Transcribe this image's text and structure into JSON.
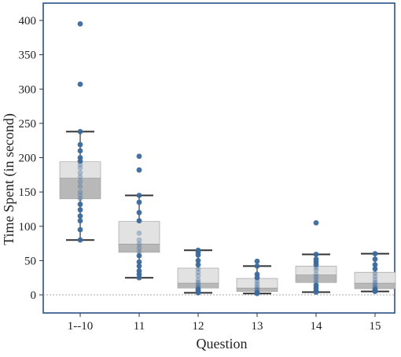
{
  "chart_data": {
    "type": "box",
    "xlabel": "Question",
    "ylabel": "Time Spent (in second)",
    "ylim": [
      0,
      400
    ],
    "yticks": [
      0,
      50,
      100,
      150,
      200,
      250,
      300,
      350,
      400
    ],
    "grid": false,
    "reference_line_y": 0,
    "colors": {
      "frame": "#2a4f86",
      "point": "#3c6a9c",
      "whisker": "#333333",
      "box_upper": "#e2e2e2",
      "box_lower": "#b8b8b8",
      "baseline": "#aaaaaa"
    },
    "categories": [
      "1--10",
      "11",
      "12",
      "13",
      "14",
      "15"
    ],
    "boxes": [
      {
        "category": "1--10",
        "whisker_low": 80,
        "q1": 140,
        "median": 170,
        "q3": 194,
        "whisker_high": 238,
        "points": [
          395,
          307,
          238,
          219,
          210,
          200,
          195,
          190,
          185,
          178,
          172,
          165,
          158,
          150,
          145,
          140,
          132,
          124,
          115,
          108,
          95,
          80
        ]
      },
      {
        "category": "11",
        "whisker_low": 25,
        "q1": 62,
        "median": 74,
        "q3": 107,
        "whisker_high": 145,
        "points": [
          202,
          182,
          145,
          135,
          120,
          108,
          90,
          80,
          74,
          68,
          62,
          57,
          48,
          42,
          35,
          30,
          25
        ]
      },
      {
        "category": "12",
        "whisker_low": 3,
        "q1": 10,
        "median": 17,
        "q3": 39,
        "whisker_high": 65,
        "points": [
          65,
          62,
          58,
          50,
          44,
          38,
          33,
          28,
          22,
          18,
          15,
          12,
          10,
          8,
          6,
          4,
          3
        ]
      },
      {
        "category": "13",
        "whisker_low": 2,
        "q1": 5,
        "median": 10,
        "q3": 24,
        "whisker_high": 42,
        "points": [
          49,
          42,
          30,
          25,
          20,
          16,
          12,
          9,
          7,
          5,
          3,
          2
        ]
      },
      {
        "category": "14",
        "whisker_low": 4,
        "q1": 18,
        "median": 29,
        "q3": 42,
        "whisker_high": 59,
        "points": [
          105,
          59,
          52,
          48,
          44,
          40,
          36,
          30,
          26,
          22,
          18,
          14,
          10,
          6,
          4
        ]
      },
      {
        "category": "15",
        "whisker_low": 5,
        "q1": 9,
        "median": 17,
        "q3": 33,
        "whisker_high": 60,
        "points": [
          60,
          52,
          44,
          38,
          32,
          27,
          22,
          18,
          15,
          12,
          10,
          8,
          6,
          5
        ]
      }
    ]
  }
}
